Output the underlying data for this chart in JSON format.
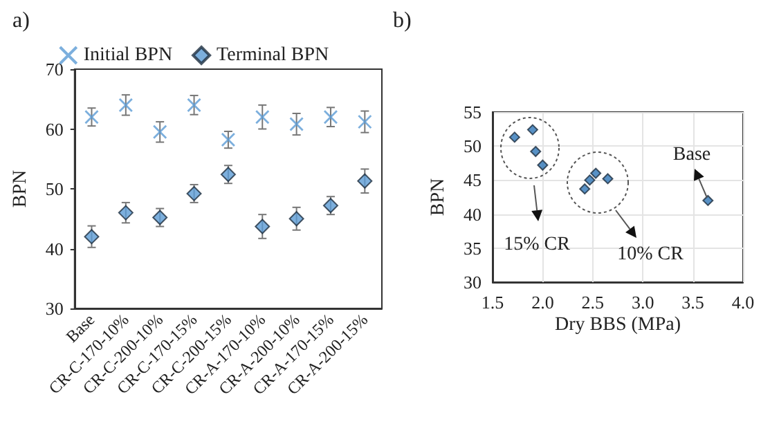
{
  "chart_data": [
    {
      "type": "scatter",
      "title": "a)",
      "ylabel": "BPN",
      "legend": "top",
      "categories": [
        "Base",
        "CR-C-170-10%",
        "CR-C-200-10%",
        "CR-C-170-15%",
        "CR-C-200-15%",
        "CR-A-170-10%",
        "CR-A-200-10%",
        "CR-A-170-15%",
        "CR-A-200-15%"
      ],
      "ylim": [
        30,
        70
      ],
      "yticks": [
        30,
        40,
        50,
        60,
        70
      ],
      "series": [
        {
          "name": "Initial BPN",
          "color": "#5b9bd5",
          "marker": "cross",
          "values": [
            62,
            64,
            59.5,
            64,
            58.2,
            62,
            60.8,
            62,
            61.2
          ],
          "errors": [
            1.5,
            1.7,
            1.7,
            1.6,
            1.4,
            2,
            1.8,
            1.6,
            1.8
          ]
        },
        {
          "name": "Terminal BPN",
          "color": "#5b9bd5",
          "marker": "diamond",
          "values": [
            42,
            46,
            45.2,
            49.2,
            52.4,
            43.7,
            45,
            47.2,
            51.3
          ],
          "errors": [
            1.8,
            1.7,
            1.5,
            1.5,
            1.5,
            2,
            1.9,
            1.5,
            2
          ]
        }
      ]
    },
    {
      "type": "scatter",
      "title": "b)",
      "xlabel": "Dry BBS (MPa)",
      "ylabel": "BPN",
      "grid": true,
      "marker": "diamond",
      "x": [
        1.72,
        1.9,
        1.93,
        2.0,
        2.42,
        2.47,
        2.53,
        2.65,
        3.65
      ],
      "values": [
        51.3,
        52.4,
        49.2,
        47.2,
        43.7,
        45,
        46,
        45.2,
        42
      ],
      "color": "#2e75b6",
      "xlim": [
        1.5,
        4.0
      ],
      "xticks": [
        1.5,
        {
          "value": 2,
          "label": "2.0"
        },
        2.5,
        {
          "value": 3,
          "label": "3.0"
        },
        3.5,
        {
          "value": 4,
          "label": "4.0"
        }
      ],
      "ylim": [
        30,
        55
      ],
      "yticks": [
        30,
        35,
        40,
        45,
        50,
        55
      ],
      "annotations": [
        "Base",
        "15% CR",
        "10% CR"
      ]
    }
  ]
}
